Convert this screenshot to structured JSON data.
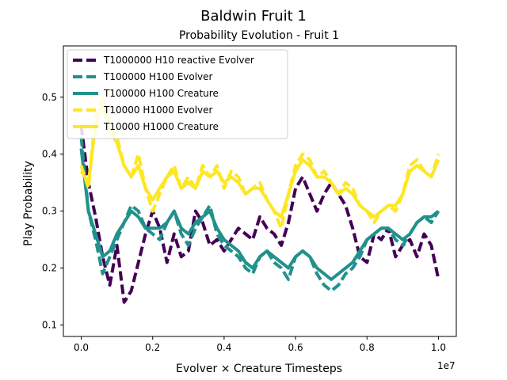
{
  "chart_data": {
    "type": "line",
    "suptitle": "Baldwin Fruit 1",
    "title": "Probability Evolution - Fruit 1",
    "xlabel": "Evolver × Creature Timesteps",
    "ylabel": "Play Probability",
    "x_offset_label": "1e7",
    "xlim": [
      -0.05,
      1.05
    ],
    "ylim": [
      0.08,
      0.59
    ],
    "xticks": [
      0.0,
      0.2,
      0.4,
      0.6,
      0.8,
      1.0
    ],
    "xtick_labels": [
      "0.0",
      "0.2",
      "0.4",
      "0.6",
      "0.8",
      "1.0"
    ],
    "yticks": [
      0.1,
      0.2,
      0.3,
      0.4,
      0.5
    ],
    "ytick_labels": [
      "0.1",
      "0.2",
      "0.3",
      "0.4",
      "0.5"
    ],
    "grid": false,
    "legend_position": "upper-left",
    "x": [
      0.0,
      0.02,
      0.04,
      0.06,
      0.08,
      0.1,
      0.12,
      0.14,
      0.16,
      0.18,
      0.2,
      0.22,
      0.24,
      0.26,
      0.28,
      0.3,
      0.32,
      0.34,
      0.36,
      0.38,
      0.4,
      0.42,
      0.44,
      0.46,
      0.48,
      0.5,
      0.52,
      0.54,
      0.56,
      0.58,
      0.6,
      0.62,
      0.64,
      0.66,
      0.68,
      0.7,
      0.72,
      0.74,
      0.76,
      0.78,
      0.8,
      0.82,
      0.84,
      0.86,
      0.88,
      0.9,
      0.92,
      0.94,
      0.96,
      0.98,
      1.0
    ],
    "series": [
      {
        "name": "T1000000 H10 reactive Evolver",
        "color": "#440154",
        "style": "dashed",
        "values": [
          0.45,
          0.35,
          0.29,
          0.22,
          0.17,
          0.24,
          0.14,
          0.16,
          0.21,
          0.26,
          0.3,
          0.27,
          0.21,
          0.26,
          0.22,
          0.23,
          0.3,
          0.28,
          0.24,
          0.25,
          0.23,
          0.25,
          0.27,
          0.26,
          0.25,
          0.29,
          0.27,
          0.26,
          0.24,
          0.28,
          0.34,
          0.36,
          0.33,
          0.3,
          0.33,
          0.35,
          0.33,
          0.31,
          0.27,
          0.22,
          0.21,
          0.26,
          0.25,
          0.27,
          0.22,
          0.24,
          0.25,
          0.22,
          0.26,
          0.24,
          0.18
        ]
      },
      {
        "name": "T100000 H100 Evolver",
        "color": "#21918c",
        "style": "dashed",
        "values": [
          0.43,
          0.3,
          0.25,
          0.19,
          0.22,
          0.25,
          0.28,
          0.31,
          0.3,
          0.27,
          0.26,
          0.25,
          0.28,
          0.3,
          0.26,
          0.24,
          0.27,
          0.29,
          0.31,
          0.26,
          0.24,
          0.23,
          0.22,
          0.2,
          0.19,
          0.22,
          0.23,
          0.21,
          0.2,
          0.18,
          0.22,
          0.23,
          0.22,
          0.19,
          0.17,
          0.16,
          0.17,
          0.19,
          0.2,
          0.22,
          0.25,
          0.26,
          0.27,
          0.27,
          0.25,
          0.24,
          0.26,
          0.28,
          0.29,
          0.28,
          0.3
        ]
      },
      {
        "name": "T100000 H100 Creature",
        "color": "#21918c",
        "style": "solid",
        "values": [
          0.41,
          0.3,
          0.26,
          0.22,
          0.23,
          0.26,
          0.28,
          0.3,
          0.29,
          0.27,
          0.27,
          0.27,
          0.28,
          0.3,
          0.27,
          0.26,
          0.28,
          0.29,
          0.3,
          0.27,
          0.25,
          0.24,
          0.23,
          0.21,
          0.2,
          0.22,
          0.23,
          0.22,
          0.21,
          0.2,
          0.22,
          0.23,
          0.22,
          0.2,
          0.19,
          0.18,
          0.19,
          0.2,
          0.21,
          0.23,
          0.25,
          0.26,
          0.27,
          0.27,
          0.26,
          0.25,
          0.26,
          0.28,
          0.29,
          0.29,
          0.3
        ]
      },
      {
        "name": "T10000 H1000 Evolver",
        "color": "#fde725",
        "style": "dashed",
        "values": [
          0.38,
          0.34,
          0.47,
          0.5,
          0.45,
          0.43,
          0.38,
          0.36,
          0.4,
          0.34,
          0.3,
          0.33,
          0.36,
          0.38,
          0.34,
          0.36,
          0.34,
          0.38,
          0.36,
          0.38,
          0.34,
          0.37,
          0.36,
          0.33,
          0.34,
          0.35,
          0.32,
          0.3,
          0.27,
          0.33,
          0.38,
          0.4,
          0.39,
          0.36,
          0.37,
          0.35,
          0.33,
          0.35,
          0.34,
          0.31,
          0.3,
          0.28,
          0.3,
          0.31,
          0.3,
          0.33,
          0.38,
          0.39,
          0.37,
          0.36,
          0.4
        ]
      },
      {
        "name": "T10000 H1000 Creature",
        "color": "#fde725",
        "style": "solid",
        "values": [
          0.37,
          0.35,
          0.45,
          0.49,
          0.44,
          0.42,
          0.38,
          0.36,
          0.38,
          0.34,
          0.32,
          0.34,
          0.36,
          0.37,
          0.34,
          0.35,
          0.34,
          0.37,
          0.36,
          0.37,
          0.35,
          0.36,
          0.35,
          0.33,
          0.34,
          0.34,
          0.32,
          0.3,
          0.29,
          0.33,
          0.37,
          0.39,
          0.38,
          0.36,
          0.36,
          0.35,
          0.33,
          0.34,
          0.33,
          0.31,
          0.3,
          0.29,
          0.3,
          0.31,
          0.31,
          0.33,
          0.37,
          0.38,
          0.37,
          0.36,
          0.39
        ]
      }
    ]
  }
}
